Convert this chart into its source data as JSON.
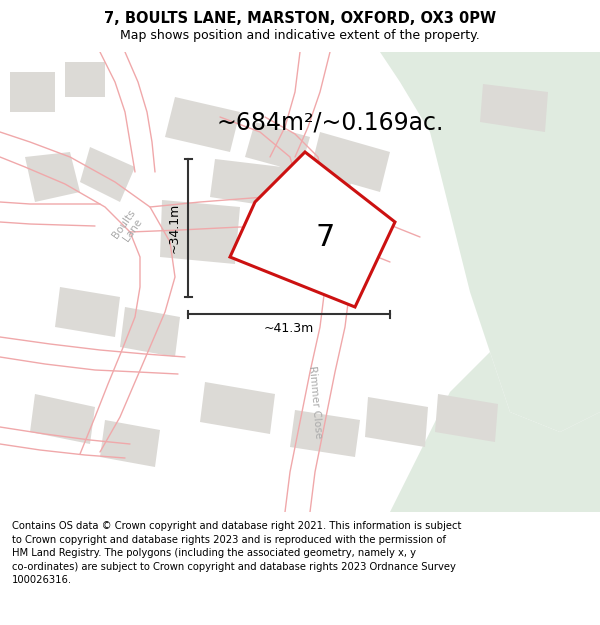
{
  "title": "7, BOULTS LANE, MARSTON, OXFORD, OX3 0PW",
  "subtitle": "Map shows position and indicative extent of the property.",
  "area_text": "~684m²/~0.169ac.",
  "label_7": "7",
  "dim_horizontal": "~41.3m",
  "dim_vertical": "~34.1m",
  "footer_text": "Contains OS data © Crown copyright and database right 2021. This information is subject\nto Crown copyright and database rights 2023 and is reproduced with the permission of\nHM Land Registry. The polygons (including the associated geometry, namely x, y\nco-ordinates) are subject to Crown copyright and database rights 2023 Ordnance Survey\n100026316.",
  "map_bg": "#f7f4f0",
  "green_color": "#e0ebe0",
  "building_color": "#dcdad6",
  "road_color": "#f0a8aa",
  "property_color": "#cc1111",
  "dim_line_color": "#333333",
  "road_label_color": "#aaaaaa",
  "text_color": "#222222"
}
